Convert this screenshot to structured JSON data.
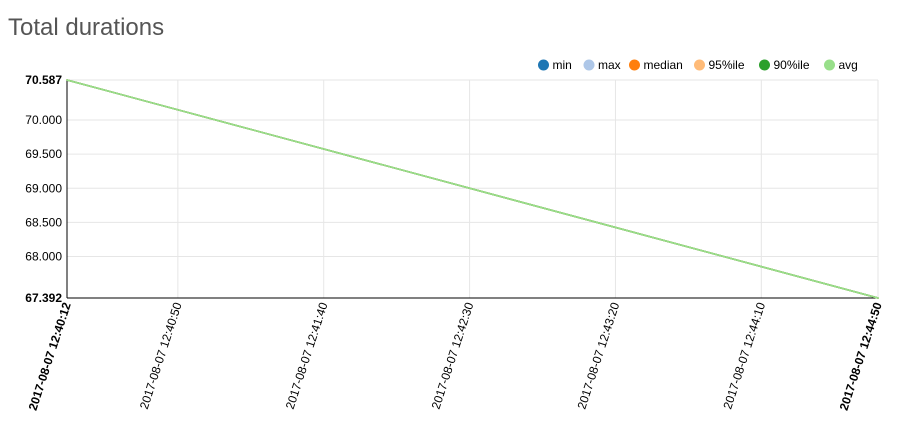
{
  "chart_data": {
    "type": "line",
    "title": "Total durations",
    "xlabel": "",
    "ylabel": "",
    "grid": true,
    "legend_position": "top-right",
    "x_range": [
      "2017-08-07 12:40:12",
      "2017-08-07 12:44:50"
    ],
    "ylim": [
      67.392,
      70.587
    ],
    "x_ticks": [
      {
        "label": "2017-08-07 12:40:12",
        "bold": true
      },
      {
        "label": "2017-08-07 12:40:50",
        "bold": false
      },
      {
        "label": "2017-08-07 12:41:40",
        "bold": false
      },
      {
        "label": "2017-08-07 12:42:30",
        "bold": false
      },
      {
        "label": "2017-08-07 12:43:20",
        "bold": false
      },
      {
        "label": "2017-08-07 12:44:10",
        "bold": false
      },
      {
        "label": "2017-08-07 12:44:50",
        "bold": true
      }
    ],
    "y_ticks": [
      {
        "label": "70.587",
        "value": 70.587,
        "bold": true
      },
      {
        "label": "70.000",
        "value": 70.0,
        "bold": false
      },
      {
        "label": "69.500",
        "value": 69.5,
        "bold": false
      },
      {
        "label": "69.000",
        "value": 69.0,
        "bold": false
      },
      {
        "label": "68.500",
        "value": 68.5,
        "bold": false
      },
      {
        "label": "68.000",
        "value": 68.0,
        "bold": false
      },
      {
        "label": "67.392",
        "value": 67.392,
        "bold": true
      }
    ],
    "series": [
      {
        "name": "min",
        "color": "#1f77b4",
        "x": [
          "2017-08-07 12:40:12",
          "2017-08-07 12:44:50"
        ],
        "values": [
          70.587,
          67.392
        ]
      },
      {
        "name": "max",
        "color": "#aec7e8",
        "x": [
          "2017-08-07 12:40:12",
          "2017-08-07 12:44:50"
        ],
        "values": [
          70.587,
          67.392
        ]
      },
      {
        "name": "median",
        "color": "#ff7f0e",
        "x": [
          "2017-08-07 12:40:12",
          "2017-08-07 12:44:50"
        ],
        "values": [
          70.587,
          67.392
        ]
      },
      {
        "name": "95%ile",
        "color": "#ffbb78",
        "x": [
          "2017-08-07 12:40:12",
          "2017-08-07 12:44:50"
        ],
        "values": [
          70.587,
          67.392
        ]
      },
      {
        "name": "90%ile",
        "color": "#2ca02c",
        "x": [
          "2017-08-07 12:40:12",
          "2017-08-07 12:44:50"
        ],
        "values": [
          70.587,
          67.392
        ]
      },
      {
        "name": "avg",
        "color": "#98df8a",
        "x": [
          "2017-08-07 12:40:12",
          "2017-08-07 12:44:50"
        ],
        "values": [
          70.587,
          67.392
        ]
      }
    ]
  }
}
